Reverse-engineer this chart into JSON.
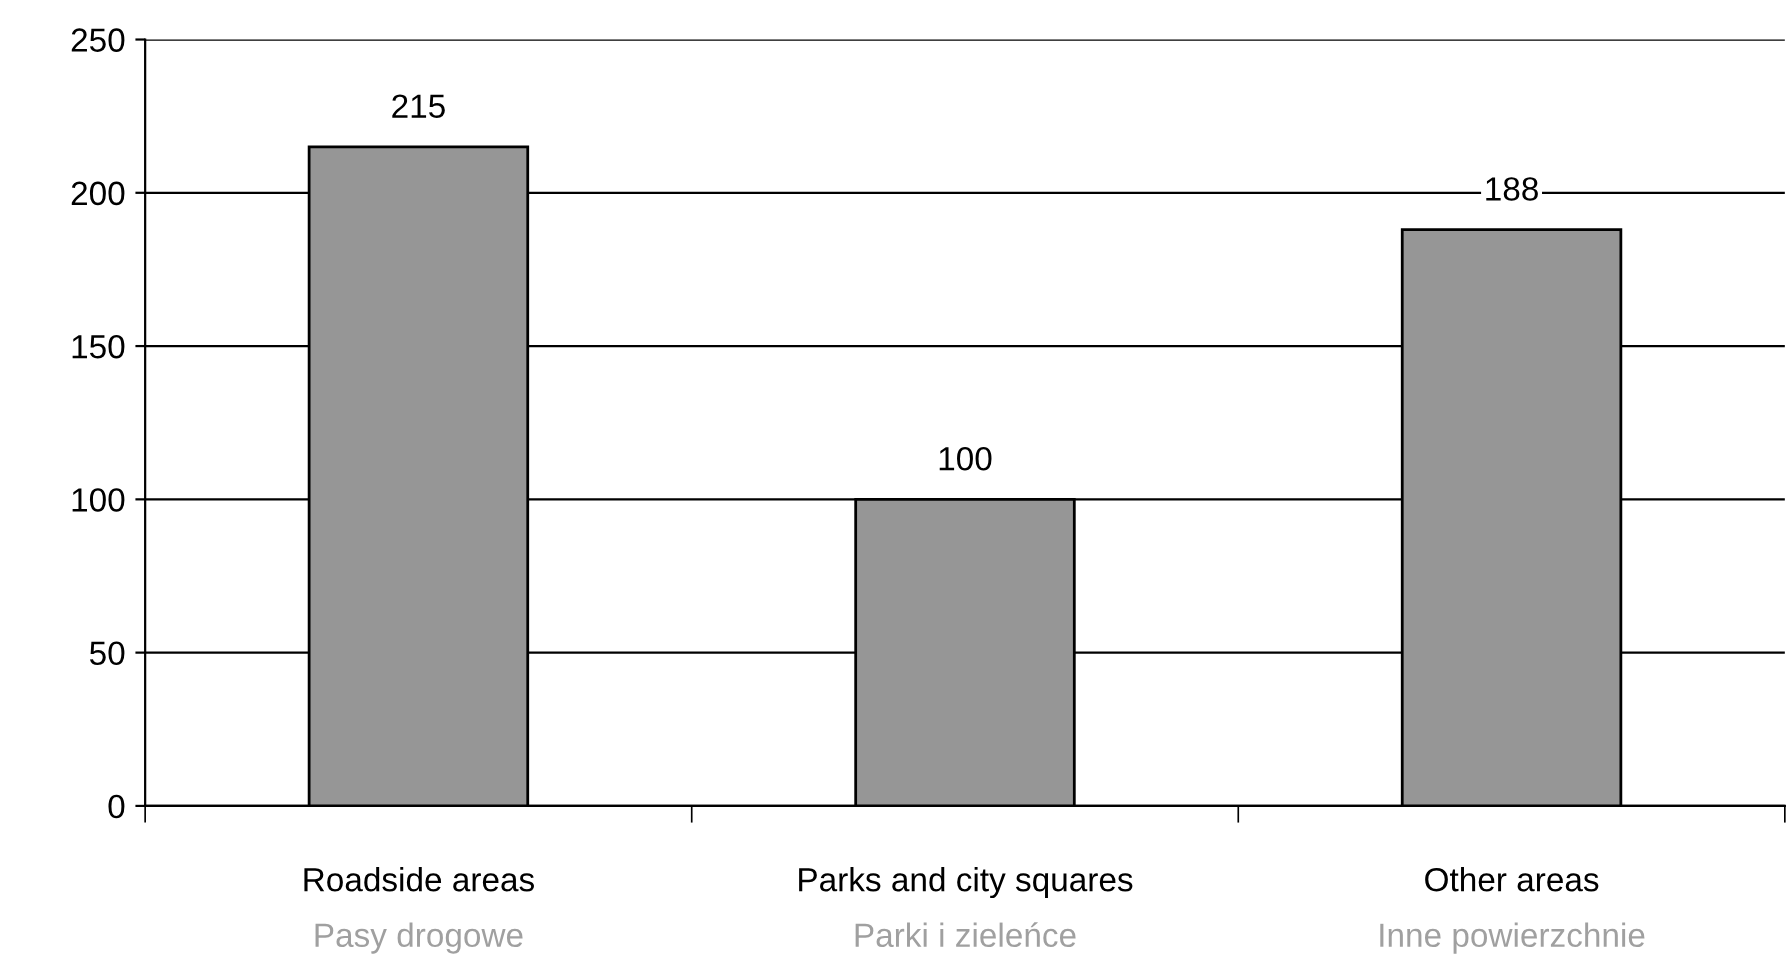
{
  "chart_data": {
    "type": "bar",
    "categories": [
      "Roadside areas\nPasy drogowe",
      "Parks and city squares\nParki i zieleńce",
      "Other areas\nInne powierzchnie"
    ],
    "values": [
      215,
      100,
      188
    ],
    "color": "#969696",
    "ylim": [
      0,
      250
    ],
    "yticks": [
      0,
      50,
      100,
      150,
      200,
      250
    ],
    "grid": "y",
    "data_labels": true,
    "legend": false
  }
}
